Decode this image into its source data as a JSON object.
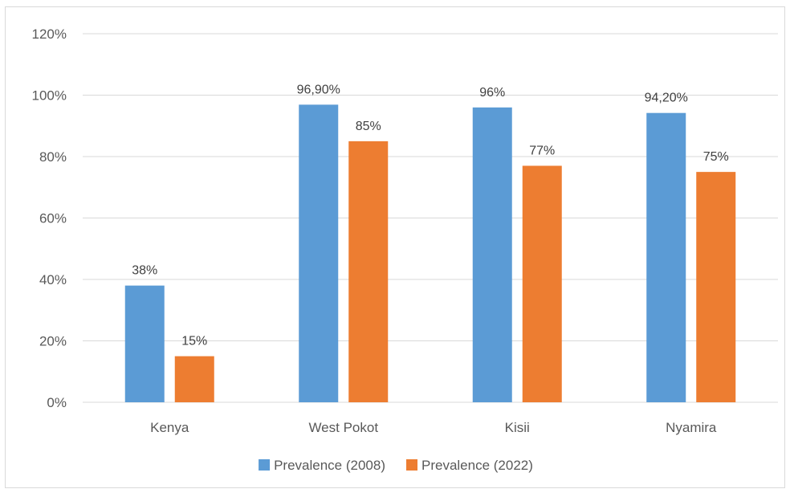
{
  "chart_data": {
    "type": "bar",
    "categories": [
      "Kenya",
      "West Pokot",
      "Kisii",
      "Nyamira"
    ],
    "series": [
      {
        "name": "Prevalence (2008)",
        "values": [
          38,
          96.9,
          96,
          94.2
        ],
        "labels": [
          "38%",
          "96,90%",
          "96%",
          "94,20%"
        ],
        "color": "#5b9bd5"
      },
      {
        "name": "Prevalence (2022)",
        "values": [
          15,
          85,
          77,
          75
        ],
        "labels": [
          "15%",
          "85%",
          "77%",
          "75%"
        ],
        "color": "#ed7d31"
      }
    ],
    "ylim": [
      0,
      120
    ],
    "y_ticks": [
      0,
      20,
      40,
      60,
      80,
      100,
      120
    ],
    "y_tick_labels": [
      "0%",
      "20%",
      "40%",
      "60%",
      "80%",
      "100%",
      "120%"
    ],
    "grid": true,
    "legend_position": "bottom"
  }
}
